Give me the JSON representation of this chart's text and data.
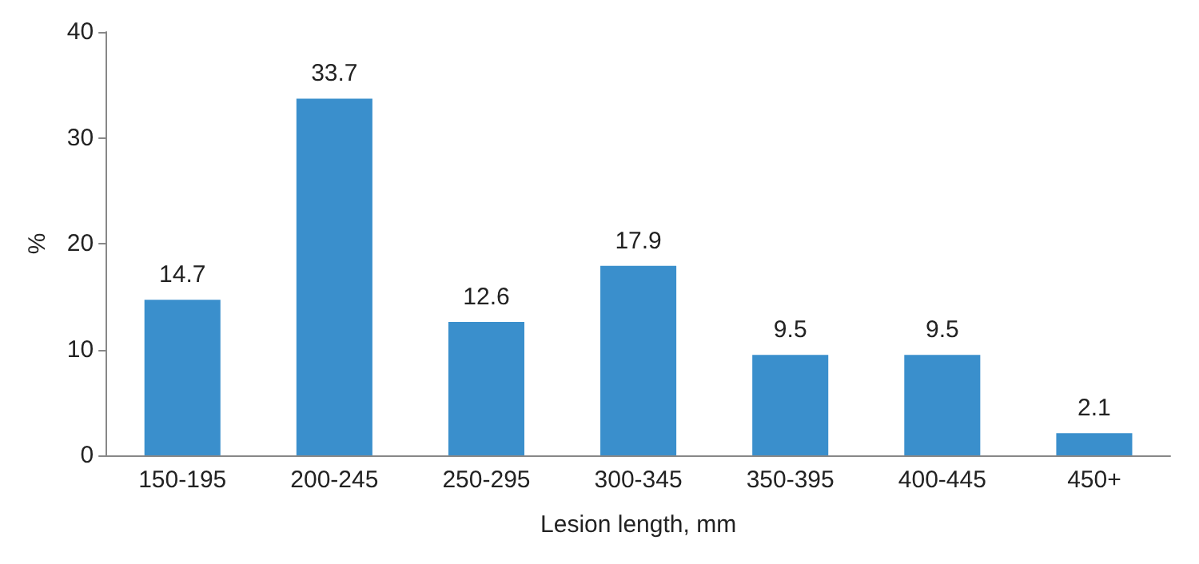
{
  "chart_data": {
    "type": "bar",
    "xlabel": "Lesion length, mm",
    "ylabel": "%",
    "categories": [
      "150-195",
      "200-245",
      "250-295",
      "300-345",
      "350-395",
      "400-445",
      "450+"
    ],
    "values": [
      14.7,
      33.7,
      12.6,
      17.9,
      9.5,
      9.5,
      2.1
    ],
    "color": "#3a8fcc",
    "ylim": [
      0,
      40
    ],
    "yticks": [
      0,
      10,
      20,
      30,
      40
    ],
    "grid": false,
    "data_labels": true
  }
}
